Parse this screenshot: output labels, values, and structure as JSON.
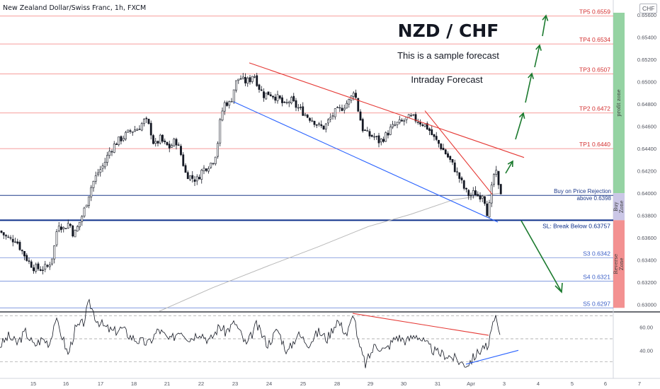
{
  "header": {
    "symbol_title": "New Zealand Dollar/Swiss Franc, 1h, FXCM",
    "currency_badge": "CHF"
  },
  "annotations": {
    "pair_title": "NZD / CHF",
    "subtitle": "This is a sample forecast",
    "forecast_type": "Intraday Forecast"
  },
  "colors": {
    "price_line": "#131722",
    "tp_line": "#ef5350",
    "support_line": "#5b7bd5",
    "trend_red": "#e53935",
    "trend_blue": "#2962ff",
    "ma": "#b8b8b8",
    "arrow": "#1b7a2e",
    "profit_zone": "#8fd19e",
    "buy_zone": "#c8c4e6",
    "reverse_zone": "#f28b8b"
  },
  "chart_data": [
    {
      "type": "candlestick",
      "title": "",
      "x_tick_labels": [
        "15",
        "16",
        "17",
        "18",
        "21",
        "22",
        "23",
        "24",
        "25",
        "28",
        "29",
        "30",
        "31",
        "Apr",
        "3",
        "4",
        "5",
        "6",
        "7"
      ],
      "y_tick_labels": [
        "0.65600",
        "0.65400",
        "0.65200",
        "0.65000",
        "0.64800",
        "0.64600",
        "0.64400",
        "0.64200",
        "0.64000",
        "0.63800",
        "0.63600",
        "0.63400",
        "0.63200",
        "0.63000"
      ],
      "ylim": [
        0.6294,
        0.6562
      ],
      "price_path": [
        [
          0,
          0.6366
        ],
        [
          8,
          0.6361
        ],
        [
          16,
          0.6358
        ],
        [
          22,
          0.6359
        ],
        [
          30,
          0.6349
        ],
        [
          40,
          0.6339
        ],
        [
          48,
          0.6333
        ],
        [
          58,
          0.6332
        ],
        [
          68,
          0.6334
        ],
        [
          75,
          0.6345
        ],
        [
          82,
          0.6374
        ],
        [
          90,
          0.6368
        ],
        [
          98,
          0.6374
        ],
        [
          104,
          0.6362
        ],
        [
          110,
          0.637
        ],
        [
          118,
          0.6383
        ],
        [
          124,
          0.6396
        ],
        [
          130,
          0.6408
        ],
        [
          138,
          0.6418
        ],
        [
          146,
          0.6425
        ],
        [
          155,
          0.6438
        ],
        [
          165,
          0.6446
        ],
        [
          175,
          0.6451
        ],
        [
          185,
          0.6456
        ],
        [
          195,
          0.6458
        ],
        [
          205,
          0.6466
        ],
        [
          212,
          0.6458
        ],
        [
          218,
          0.6442
        ],
        [
          226,
          0.6449
        ],
        [
          232,
          0.6444
        ],
        [
          240,
          0.6441
        ],
        [
          248,
          0.6448
        ],
        [
          255,
          0.6436
        ],
        [
          262,
          0.6418
        ],
        [
          270,
          0.6414
        ],
        [
          278,
          0.6412
        ],
        [
          285,
          0.642
        ],
        [
          292,
          0.6424
        ],
        [
          300,
          0.6428
        ],
        [
          306,
          0.6438
        ],
        [
          312,
          0.647
        ],
        [
          318,
          0.6482
        ],
        [
          325,
          0.648
        ],
        [
          332,
          0.6498
        ],
        [
          338,
          0.6504
        ],
        [
          345,
          0.65
        ],
        [
          352,
          0.6501
        ],
        [
          358,
          0.6508
        ],
        [
          365,
          0.6496
        ],
        [
          372,
          0.6488
        ],
        [
          380,
          0.649
        ],
        [
          388,
          0.6487
        ],
        [
          395,
          0.6484
        ],
        [
          402,
          0.6478
        ],
        [
          410,
          0.6484
        ],
        [
          418,
          0.6478
        ],
        [
          426,
          0.6474
        ],
        [
          434,
          0.6469
        ],
        [
          442,
          0.6466
        ],
        [
          450,
          0.646
        ],
        [
          458,
          0.6459
        ],
        [
          465,
          0.6466
        ],
        [
          472,
          0.6472
        ],
        [
          480,
          0.6475
        ],
        [
          488,
          0.648
        ],
        [
          495,
          0.6484
        ],
        [
          500,
          0.6494
        ],
        [
          505,
          0.6477
        ],
        [
          512,
          0.6458
        ],
        [
          520,
          0.6452
        ],
        [
          528,
          0.6451
        ],
        [
          536,
          0.6446
        ],
        [
          545,
          0.6452
        ],
        [
          552,
          0.6458
        ],
        [
          560,
          0.6462
        ],
        [
          568,
          0.6464
        ],
        [
          575,
          0.6467
        ],
        [
          582,
          0.6468
        ],
        [
          590,
          0.6465
        ],
        [
          598,
          0.6462
        ],
        [
          605,
          0.6458
        ],
        [
          612,
          0.645
        ],
        [
          620,
          0.6444
        ],
        [
          628,
          0.6437
        ],
        [
          635,
          0.643
        ],
        [
          642,
          0.6422
        ],
        [
          650,
          0.6412
        ],
        [
          657,
          0.6402
        ],
        [
          664,
          0.6397
        ],
        [
          670,
          0.6401
        ],
        [
          676,
          0.6397
        ],
        [
          682,
          0.64
        ],
        [
          686,
          0.639
        ],
        [
          689,
          0.6378
        ],
        [
          692,
          0.6394
        ],
        [
          697,
          0.6416
        ],
        [
          700,
          0.642
        ],
        [
          704,
          0.6405
        ],
        [
          708,
          0.64
        ]
      ],
      "moving_average_path": [
        [
          225,
          0.6294
        ],
        [
          300,
          0.6315
        ],
        [
          380,
          0.6335
        ],
        [
          450,
          0.6352
        ],
        [
          520,
          0.637
        ],
        [
          580,
          0.6381
        ],
        [
          640,
          0.6394
        ],
        [
          706,
          0.64
        ]
      ],
      "levels": [
        {
          "label": "TP5 0.6559",
          "value": 0.6559,
          "kind": "target"
        },
        {
          "label": "TP4 0.6534",
          "value": 0.6534,
          "kind": "target"
        },
        {
          "label": "TP3 0.6507",
          "value": 0.6507,
          "kind": "target"
        },
        {
          "label": "TP2 0.6472",
          "value": 0.6472,
          "kind": "target"
        },
        {
          "label": "TP1 0.6440",
          "value": 0.644,
          "kind": "target"
        },
        {
          "label_lines": [
            "Buy on Price Rejection",
            "above 0.6398"
          ],
          "value": 0.6398,
          "kind": "entry"
        },
        {
          "label": "SL: Break Below 0.63757",
          "value": 0.63757,
          "kind": "stop"
        },
        {
          "label": "S3 0.6342",
          "value": 0.6342,
          "kind": "support"
        },
        {
          "label": "S4 0.6321",
          "value": 0.6321,
          "kind": "support"
        },
        {
          "label": "S5 0.6297",
          "value": 0.6297,
          "kind": "support"
        }
      ],
      "zones": [
        {
          "label": "profit zone",
          "from": 0.64,
          "to": 0.6562,
          "color_key": "profit_zone"
        },
        {
          "label_lines": [
            "Buy",
            "Zone"
          ],
          "from": 0.63757,
          "to": 0.64,
          "color_key": "buy_zone"
        },
        {
          "label_lines": [
            "Reverse",
            "Zone"
          ],
          "from": 0.6297,
          "to": 0.63757,
          "color_key": "reverse_zone"
        }
      ],
      "trendlines": [
        {
          "color_key": "trend_red",
          "from": [
            352,
            0.6517
          ],
          "to": [
            740,
            0.6432
          ]
        },
        {
          "color_key": "trend_red",
          "from": [
            600,
            0.6474
          ],
          "to": [
            695,
            0.6399
          ]
        },
        {
          "color_key": "trend_blue",
          "from": [
            330,
            0.6482
          ],
          "to": [
            703,
            0.6374
          ]
        }
      ]
    },
    {
      "type": "line",
      "title": "",
      "y_tick_labels": [
        "60.00",
        "40.00"
      ],
      "ylim": [
        20,
        80
      ],
      "levels": [
        70,
        50,
        30
      ],
      "oscillator_path": [
        [
          0,
          44
        ],
        [
          12,
          52
        ],
        [
          24,
          46
        ],
        [
          36,
          56
        ],
        [
          48,
          44
        ],
        [
          60,
          50
        ],
        [
          70,
          46
        ],
        [
          78,
          67
        ],
        [
          88,
          52
        ],
        [
          96,
          36
        ],
        [
          106,
          58
        ],
        [
          118,
          64
        ],
        [
          126,
          82
        ],
        [
          136,
          67
        ],
        [
          148,
          60
        ],
        [
          160,
          56
        ],
        [
          172,
          59
        ],
        [
          184,
          52
        ],
        [
          196,
          48
        ],
        [
          210,
          46
        ],
        [
          224,
          58
        ],
        [
          240,
          48
        ],
        [
          254,
          58
        ],
        [
          268,
          50
        ],
        [
          282,
          56
        ],
        [
          296,
          48
        ],
        [
          310,
          61
        ],
        [
          318,
          56
        ],
        [
          332,
          64
        ],
        [
          348,
          44
        ],
        [
          362,
          62
        ],
        [
          378,
          45
        ],
        [
          392,
          58
        ],
        [
          406,
          38
        ],
        [
          420,
          54
        ],
        [
          436,
          46
        ],
        [
          450,
          56
        ],
        [
          462,
          50
        ],
        [
          476,
          66
        ],
        [
          490,
          54
        ],
        [
          500,
          72
        ],
        [
          506,
          46
        ],
        [
          516,
          28
        ],
        [
          530,
          45
        ],
        [
          544,
          40
        ],
        [
          560,
          52
        ],
        [
          574,
          48
        ],
        [
          588,
          54
        ],
        [
          602,
          45
        ],
        [
          616,
          38
        ],
        [
          630,
          36
        ],
        [
          642,
          33
        ],
        [
          652,
          29
        ],
        [
          660,
          28
        ],
        [
          672,
          36
        ],
        [
          684,
          44
        ],
        [
          690,
          40
        ],
        [
          694,
          62
        ],
        [
          700,
          66
        ],
        [
          706,
          52
        ]
      ],
      "trendlines": [
        {
          "color_key": "trend_red",
          "from": [
            498,
            72
          ],
          "to": [
            690,
            53
          ]
        },
        {
          "color_key": "trend_blue",
          "from": [
            658,
            28
          ],
          "to": [
            732,
            40
          ]
        }
      ]
    }
  ]
}
